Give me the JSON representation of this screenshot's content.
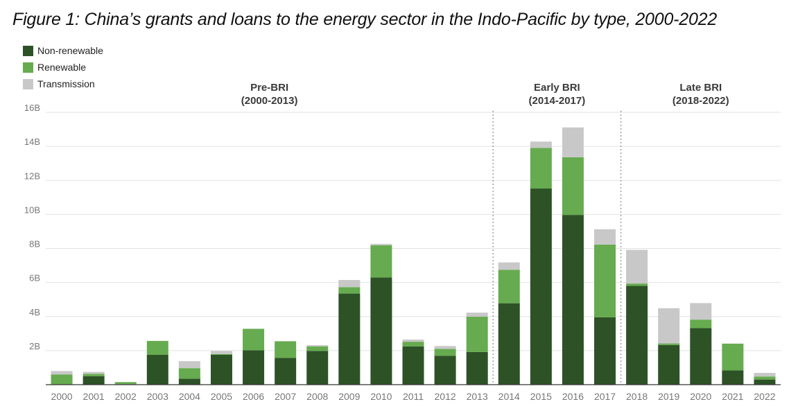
{
  "title": "Figure 1: China’s grants and loans to the energy sector in the Indo-Pacific by type, 2000-2022",
  "colors": {
    "non_renewable": "#2d5226",
    "renewable": "#66ab4f",
    "transmission": "#c8c8c8",
    "grid": "#e2e2e2",
    "divider": "#9a9a9a",
    "axis_text": "#777777",
    "period_text": "#3a3a3a"
  },
  "legend": [
    {
      "label": "Non-renewable",
      "color": "#2d5226"
    },
    {
      "label": "Renewable",
      "color": "#66ab4f"
    },
    {
      "label": "Transmission",
      "color": "#c8c8c8"
    }
  ],
  "periods": [
    {
      "name": "Pre-BRI",
      "range": "(2000-2013)",
      "from": "2000",
      "to": "2013"
    },
    {
      "name": "Early BRI",
      "range": "(2014-2017)",
      "from": "2014",
      "to": "2017"
    },
    {
      "name": "Late BRI",
      "range": "(2018-2022)",
      "from": "2018",
      "to": "2022"
    }
  ],
  "chart_data": {
    "type": "bar",
    "stacked": true,
    "title": "Figure 1: China’s grants and loans to the energy sector in the Indo-Pacific by type, 2000-2022",
    "xlabel": "",
    "ylabel": "",
    "ylim": [
      0,
      16
    ],
    "y_ticks": [
      {
        "value": 2,
        "label": "2B"
      },
      {
        "value": 4,
        "label": "4B"
      },
      {
        "value": 6,
        "label": "6B"
      },
      {
        "value": 8,
        "label": "8B"
      },
      {
        "value": 10,
        "label": "10B"
      },
      {
        "value": 12,
        "label": "12B"
      },
      {
        "value": 14,
        "label": "14B"
      },
      {
        "value": 16,
        "label": "16B"
      }
    ],
    "grid": true,
    "legend_position": "top-left",
    "categories": [
      "2000",
      "2001",
      "2002",
      "2003",
      "2004",
      "2005",
      "2006",
      "2007",
      "2008",
      "2009",
      "2010",
      "2011",
      "2012",
      "2013",
      "2014",
      "2015",
      "2016",
      "2017",
      "2018",
      "2019",
      "2020",
      "2021",
      "2022"
    ],
    "series": [
      {
        "name": "Non-renewable",
        "color": "#2d5226",
        "values": [
          0.02,
          0.5,
          0.03,
          1.75,
          0.35,
          1.75,
          2.02,
          1.57,
          1.98,
          5.35,
          6.3,
          2.25,
          1.7,
          1.92,
          4.78,
          11.52,
          9.97,
          3.96,
          5.8,
          2.33,
          3.32,
          0.84,
          0.3
        ]
      },
      {
        "name": "Renewable",
        "color": "#66ab4f",
        "values": [
          0.57,
          0.13,
          0.12,
          0.82,
          0.62,
          0.05,
          1.26,
          0.98,
          0.27,
          0.38,
          1.89,
          0.27,
          0.4,
          2.07,
          1.97,
          2.39,
          3.39,
          4.27,
          0.14,
          0.09,
          0.5,
          1.57,
          0.18
        ]
      },
      {
        "name": "Transmission",
        "color": "#c8c8c8",
        "values": [
          0.21,
          0.12,
          0.0,
          0.0,
          0.41,
          0.18,
          0.0,
          0.0,
          0.07,
          0.42,
          0.08,
          0.13,
          0.17,
          0.24,
          0.43,
          0.37,
          1.75,
          0.9,
          1.98,
          2.07,
          0.97,
          0.0,
          0.21
        ]
      }
    ]
  }
}
